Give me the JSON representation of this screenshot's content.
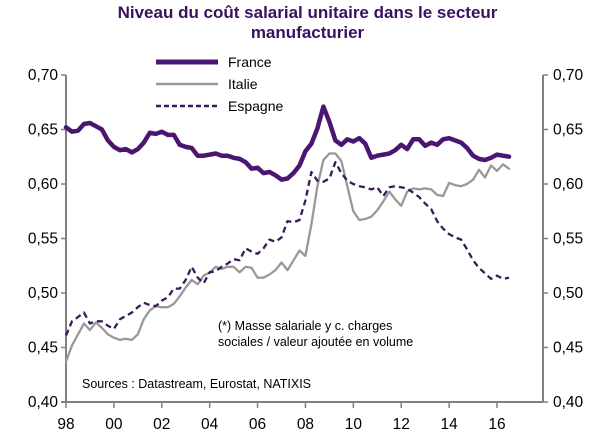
{
  "chart_data": {
    "type": "line",
    "title": "Niveau du coût salarial unitaire dans le secteur manufacturier",
    "title_lines": [
      "Niveau du coût salarial unitaire dans le secteur",
      "manufacturier"
    ],
    "xlabel": "",
    "ylabel": "",
    "xlim": [
      1998,
      2017.8
    ],
    "ylim": [
      0.4,
      0.7
    ],
    "x_ticks": [
      1998,
      2000,
      2002,
      2004,
      2006,
      2008,
      2010,
      2012,
      2014,
      2016
    ],
    "x_tick_labels": [
      "98",
      "00",
      "02",
      "04",
      "06",
      "08",
      "10",
      "12",
      "14",
      "16"
    ],
    "y_ticks": [
      0.4,
      0.45,
      0.5,
      0.55,
      0.6,
      0.65,
      0.7
    ],
    "y_tick_labels": [
      "0,40",
      "0,45",
      "0,50",
      "0,55",
      "0,60",
      "0,65",
      "0,70"
    ],
    "y2_tick_labels": [
      "0,40",
      "0,45",
      "0,50",
      "0,55",
      "0,60",
      "0,65",
      "0,70"
    ],
    "grid": false,
    "legend_position": "top-left",
    "series": [
      {
        "name": "France",
        "color": "#4b1672",
        "style": "solid-thick",
        "x": [
          1998.0,
          1998.25,
          1998.5,
          1998.75,
          1999.0,
          1999.25,
          1999.5,
          1999.75,
          2000.0,
          2000.25,
          2000.5,
          2000.75,
          2001.0,
          2001.25,
          2001.5,
          2001.75,
          2002.0,
          2002.25,
          2002.5,
          2002.75,
          2003.0,
          2003.25,
          2003.5,
          2003.75,
          2004.0,
          2004.25,
          2004.5,
          2004.75,
          2005.0,
          2005.25,
          2005.5,
          2005.75,
          2006.0,
          2006.25,
          2006.5,
          2006.75,
          2007.0,
          2007.25,
          2007.5,
          2007.75,
          2008.0,
          2008.25,
          2008.5,
          2008.75,
          2009.0,
          2009.25,
          2009.5,
          2009.75,
          2010.0,
          2010.25,
          2010.5,
          2010.75,
          2011.0,
          2011.25,
          2011.5,
          2011.75,
          2012.0,
          2012.25,
          2012.5,
          2012.75,
          2013.0,
          2013.25,
          2013.5,
          2013.75,
          2014.0,
          2014.25,
          2014.5,
          2014.75,
          2015.0,
          2015.25,
          2015.5,
          2015.75,
          2016.0,
          2016.25,
          2016.5
        ],
        "values": [
          0.652,
          0.648,
          0.649,
          0.655,
          0.656,
          0.653,
          0.65,
          0.64,
          0.634,
          0.631,
          0.632,
          0.629,
          0.632,
          0.638,
          0.647,
          0.646,
          0.648,
          0.645,
          0.645,
          0.636,
          0.634,
          0.633,
          0.626,
          0.626,
          0.627,
          0.628,
          0.626,
          0.626,
          0.624,
          0.623,
          0.62,
          0.614,
          0.615,
          0.61,
          0.611,
          0.608,
          0.604,
          0.605,
          0.61,
          0.617,
          0.63,
          0.637,
          0.651,
          0.671,
          0.657,
          0.64,
          0.636,
          0.641,
          0.639,
          0.642,
          0.637,
          0.624,
          0.626,
          0.627,
          0.628,
          0.631,
          0.636,
          0.632,
          0.641,
          0.641,
          0.635,
          0.638,
          0.636,
          0.641,
          0.642,
          0.64,
          0.638,
          0.633,
          0.626,
          0.623,
          0.622,
          0.624,
          0.627,
          0.626,
          0.625
        ]
      },
      {
        "name": "Italie",
        "color": "#999999",
        "style": "solid",
        "x": [
          1998.0,
          1998.25,
          1998.5,
          1998.75,
          1999.0,
          1999.25,
          1999.5,
          1999.75,
          2000.0,
          2000.25,
          2000.5,
          2000.75,
          2001.0,
          2001.25,
          2001.5,
          2001.75,
          2002.0,
          2002.25,
          2002.5,
          2002.75,
          2003.0,
          2003.25,
          2003.5,
          2003.75,
          2004.0,
          2004.25,
          2004.5,
          2004.75,
          2005.0,
          2005.25,
          2005.5,
          2005.75,
          2006.0,
          2006.25,
          2006.5,
          2006.75,
          2007.0,
          2007.25,
          2007.5,
          2007.75,
          2008.0,
          2008.25,
          2008.5,
          2008.75,
          2009.0,
          2009.25,
          2009.5,
          2009.75,
          2010.0,
          2010.25,
          2010.5,
          2010.75,
          2011.0,
          2011.25,
          2011.5,
          2011.75,
          2012.0,
          2012.25,
          2012.5,
          2012.75,
          2013.0,
          2013.25,
          2013.5,
          2013.75,
          2014.0,
          2014.25,
          2014.5,
          2014.75,
          2015.0,
          2015.25,
          2015.5,
          2015.75,
          2016.0,
          2016.25,
          2016.5
        ],
        "values": [
          0.437,
          0.452,
          0.462,
          0.472,
          0.466,
          0.473,
          0.468,
          0.462,
          0.459,
          0.457,
          0.458,
          0.457,
          0.462,
          0.476,
          0.484,
          0.488,
          0.487,
          0.487,
          0.49,
          0.497,
          0.505,
          0.512,
          0.508,
          0.516,
          0.519,
          0.524,
          0.522,
          0.524,
          0.524,
          0.519,
          0.524,
          0.523,
          0.514,
          0.514,
          0.517,
          0.521,
          0.528,
          0.521,
          0.53,
          0.539,
          0.534,
          0.563,
          0.598,
          0.622,
          0.628,
          0.628,
          0.621,
          0.598,
          0.575,
          0.567,
          0.568,
          0.57,
          0.576,
          0.584,
          0.593,
          0.586,
          0.58,
          0.593,
          0.596,
          0.595,
          0.596,
          0.595,
          0.59,
          0.589,
          0.601,
          0.599,
          0.598,
          0.6,
          0.604,
          0.613,
          0.606,
          0.617,
          0.612,
          0.618,
          0.614
        ]
      },
      {
        "name": "Espagne",
        "color": "#3b1a5a",
        "style": "dashed",
        "x": [
          1998.0,
          1998.25,
          1998.5,
          1998.75,
          1999.0,
          1999.25,
          1999.5,
          1999.75,
          2000.0,
          2000.25,
          2000.5,
          2000.75,
          2001.0,
          2001.25,
          2001.5,
          2001.75,
          2002.0,
          2002.25,
          2002.5,
          2002.75,
          2003.0,
          2003.25,
          2003.5,
          2003.75,
          2004.0,
          2004.25,
          2004.5,
          2004.75,
          2005.0,
          2005.25,
          2005.5,
          2005.75,
          2006.0,
          2006.25,
          2006.5,
          2006.75,
          2007.0,
          2007.25,
          2007.5,
          2007.75,
          2008.0,
          2008.25,
          2008.5,
          2008.75,
          2009.0,
          2009.25,
          2009.5,
          2009.75,
          2010.0,
          2010.25,
          2010.5,
          2010.75,
          2011.0,
          2011.25,
          2011.5,
          2011.75,
          2012.0,
          2012.25,
          2012.5,
          2012.75,
          2013.0,
          2013.25,
          2013.5,
          2013.75,
          2014.0,
          2014.25,
          2014.5,
          2014.75,
          2015.0,
          2015.25,
          2015.5,
          2015.75,
          2016.0,
          2016.25,
          2016.5
        ],
        "values": [
          0.461,
          0.474,
          0.478,
          0.482,
          0.472,
          0.474,
          0.474,
          0.47,
          0.467,
          0.476,
          0.479,
          0.482,
          0.487,
          0.491,
          0.489,
          0.488,
          0.493,
          0.496,
          0.504,
          0.504,
          0.512,
          0.524,
          0.514,
          0.509,
          0.519,
          0.52,
          0.524,
          0.527,
          0.531,
          0.53,
          0.541,
          0.538,
          0.536,
          0.541,
          0.549,
          0.547,
          0.551,
          0.566,
          0.565,
          0.567,
          0.585,
          0.611,
          0.603,
          0.602,
          0.605,
          0.62,
          0.61,
          0.603,
          0.6,
          0.598,
          0.597,
          0.595,
          0.597,
          0.589,
          0.597,
          0.598,
          0.597,
          0.596,
          0.592,
          0.588,
          0.582,
          0.577,
          0.566,
          0.559,
          0.554,
          0.551,
          0.549,
          0.54,
          0.53,
          0.523,
          0.518,
          0.513,
          0.516,
          0.513,
          0.514
        ]
      }
    ],
    "annotations": [
      "(*) Masse salariale y c. charges",
      "sociales  / valeur ajoutée en volume",
      "Sources : Datastream, Eurostat, NATIXIS"
    ]
  }
}
